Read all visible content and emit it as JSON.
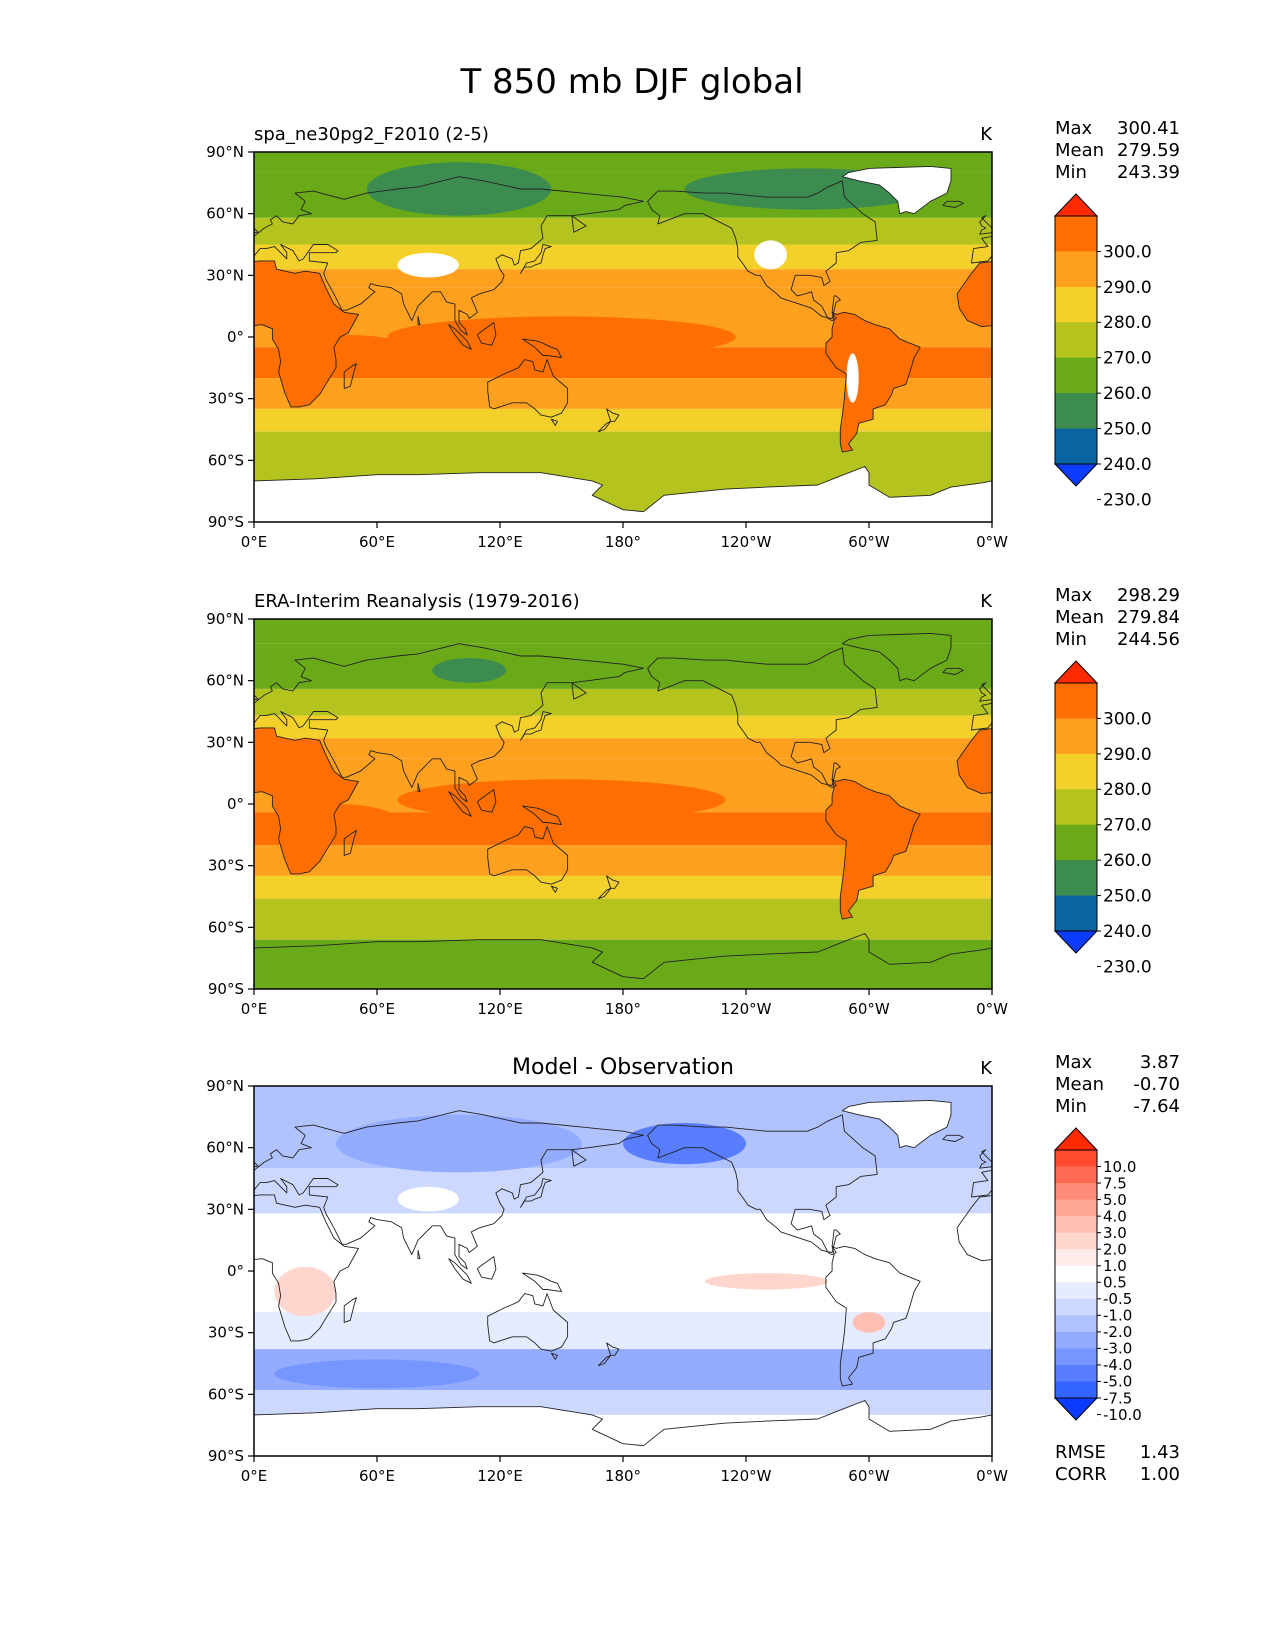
{
  "title": "T 850 mb DJF global",
  "units": "K",
  "x_tick_labels": [
    "0°E",
    "60°E",
    "120°E",
    "180°",
    "120°W",
    "60°W",
    "0°W"
  ],
  "y_tick_labels": [
    "90°N",
    "60°N",
    "30°N",
    "0°",
    "30°S",
    "60°S",
    "90°S"
  ],
  "panels": [
    {
      "id": "model",
      "title": "spa_ne30pg2_F2010 (2-5)",
      "title_style": "left",
      "stats": [
        {
          "label": "Max",
          "value": "300.41"
        },
        {
          "label": "Mean",
          "value": "279.59"
        },
        {
          "label": "Min",
          "value": "243.39"
        }
      ],
      "colorbar": {
        "levels": [
          "300.0",
          "290.0",
          "280.0",
          "270.0",
          "260.0",
          "250.0",
          "240.0",
          "230.0"
        ],
        "colors": [
          "#ff2a00",
          "#ff6e00",
          "#ffa01e",
          "#f4d02a",
          "#b4c31e",
          "#6aaa19",
          "#3c8c50",
          "#0a64a0",
          "#0a3cff"
        ]
      }
    },
    {
      "id": "obs",
      "title": "ERA-Interim Reanalysis (1979-2016)",
      "title_style": "left",
      "stats": [
        {
          "label": "Max",
          "value": "298.29"
        },
        {
          "label": "Mean",
          "value": "279.84"
        },
        {
          "label": "Min",
          "value": "244.56"
        }
      ],
      "colorbar": {
        "levels": [
          "300.0",
          "290.0",
          "280.0",
          "270.0",
          "260.0",
          "250.0",
          "240.0",
          "230.0"
        ],
        "colors": [
          "#ff2a00",
          "#ff6e00",
          "#ffa01e",
          "#f4d02a",
          "#b4c31e",
          "#6aaa19",
          "#3c8c50",
          "#0a64a0",
          "#0a3cff"
        ]
      }
    },
    {
      "id": "diff",
      "title": "Model - Observation",
      "title_style": "center",
      "stats": [
        {
          "label": "Max",
          "value": "3.87"
        },
        {
          "label": "Mean",
          "value": "-0.70"
        },
        {
          "label": "Min",
          "value": "-7.64"
        }
      ],
      "colorbar": {
        "levels": [
          "10.0",
          "7.5",
          "5.0",
          "4.0",
          "3.0",
          "2.0",
          "1.0",
          "0.5",
          "-0.5",
          "-1.0",
          "-2.0",
          "-3.0",
          "-4.0",
          "-5.0",
          "-7.5",
          "-10.0"
        ],
        "colors": [
          "#ff2a00",
          "#ff4a30",
          "#ff6a55",
          "#ff8a78",
          "#ffa596",
          "#ffbeb2",
          "#ffd6cd",
          "#ffecea",
          "#ffffff",
          "#e6ecff",
          "#ccd8ff",
          "#b0c3ff",
          "#94acff",
          "#7795ff",
          "#587dff",
          "#3464ff",
          "#0a3cff"
        ]
      },
      "extra_stats": [
        {
          "label": "RMSE",
          "value": "1.43"
        },
        {
          "label": "CORR",
          "value": "1.00"
        }
      ]
    }
  ]
}
